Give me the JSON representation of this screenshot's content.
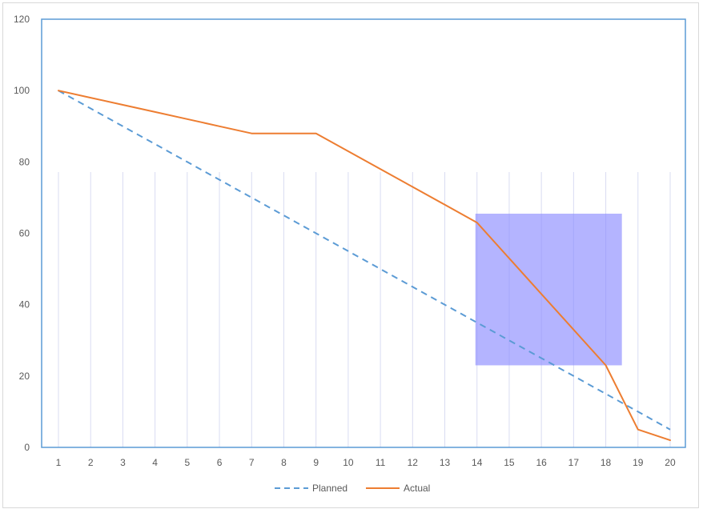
{
  "chart_data": {
    "type": "line",
    "categories": [
      "1",
      "2",
      "3",
      "4",
      "5",
      "6",
      "7",
      "8",
      "9",
      "10",
      "11",
      "12",
      "13",
      "14",
      "15",
      "16",
      "17",
      "18",
      "19",
      "20"
    ],
    "series": [
      {
        "name": "Planned",
        "color": "#5b9bd5",
        "style": "dashed",
        "values": [
          100,
          95,
          90,
          85,
          80,
          75,
          70,
          65,
          60,
          55,
          50,
          45,
          40,
          35,
          30,
          25,
          20,
          15,
          10,
          5
        ]
      },
      {
        "name": "Actual",
        "color": "#ed7d31",
        "style": "solid",
        "values": [
          100,
          98,
          96,
          94,
          92,
          90,
          88,
          88,
          88,
          83,
          78,
          73,
          68,
          63,
          53,
          43,
          33,
          23,
          5,
          2
        ]
      }
    ],
    "ylim": [
      0,
      120
    ],
    "yticks": [
      0,
      20,
      40,
      60,
      80,
      100,
      120
    ],
    "title": "",
    "xlabel": "",
    "ylabel": "",
    "legend_position": "bottom",
    "grid": "vertical lines",
    "highlight": {
      "x_from": 14,
      "x_to": 18.5,
      "y_from": 23,
      "y_to": 65.5,
      "color": "#8c8cff"
    },
    "plot_border_color": "#5b9bd5",
    "gridline_color": "#d9dcf2"
  }
}
